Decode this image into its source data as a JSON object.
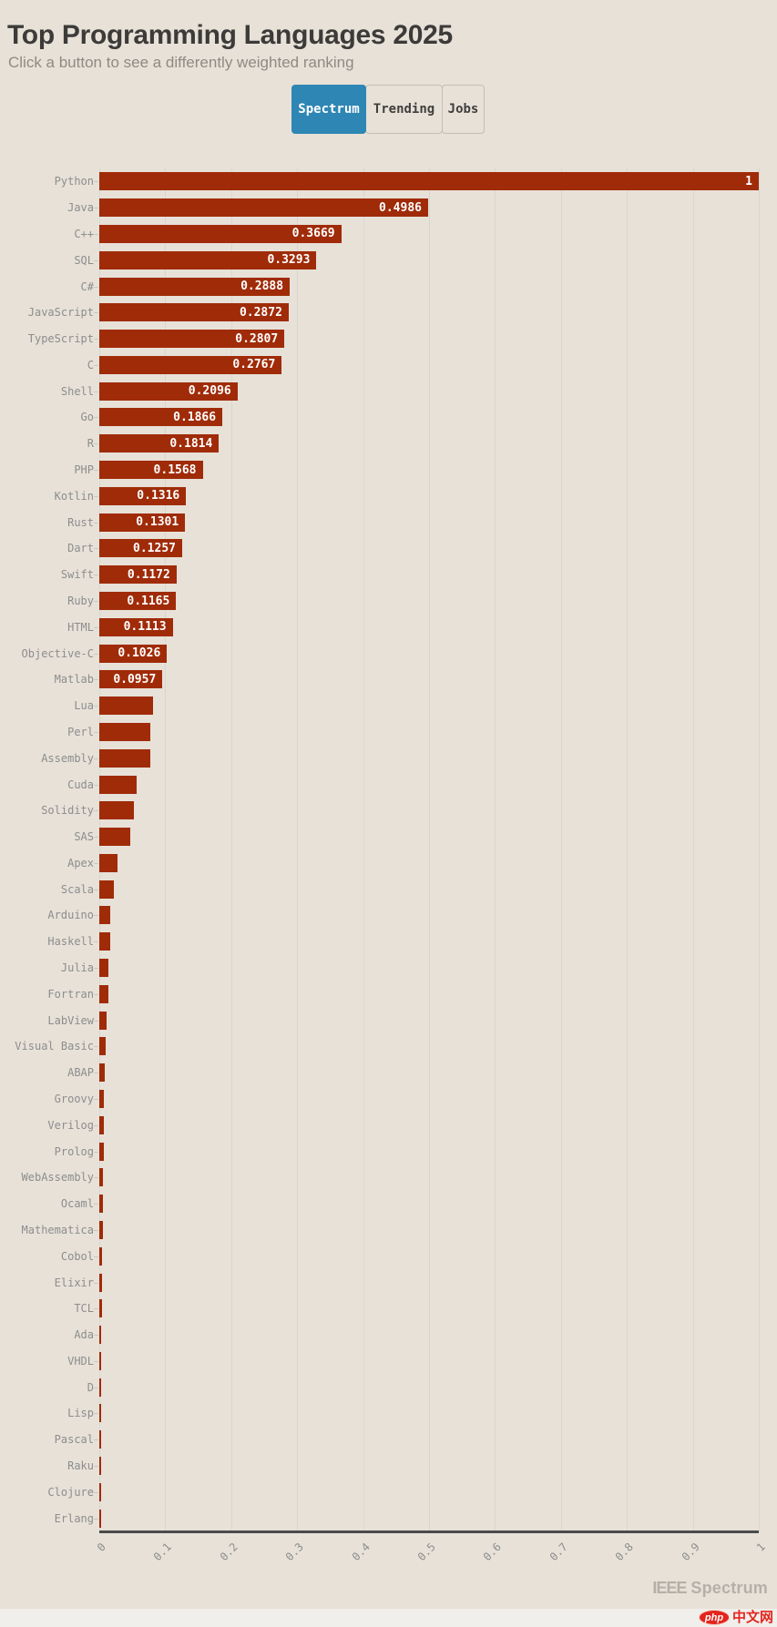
{
  "page": {
    "title": "Top Programming Languages 2025",
    "subtitle": "Click a button to see a differently weighted ranking",
    "background": "#e7e1d8",
    "accent_blue": "#2e86b4"
  },
  "buttons": [
    {
      "label": "Spectrum",
      "active": true
    },
    {
      "label": "Trending",
      "active": false
    },
    {
      "label": "Jobs",
      "active": false
    }
  ],
  "chart_data": {
    "type": "bar",
    "orientation": "horizontal",
    "title": "Top Programming Languages 2025",
    "xlabel": "",
    "ylabel": "",
    "xlim": [
      0,
      1
    ],
    "grid": true,
    "bar_color": "#a02b08",
    "x_ticks": [
      "0",
      "0.1",
      "0.2",
      "0.3",
      "0.4",
      "0.5",
      "0.6",
      "0.7",
      "0.8",
      "0.9",
      "1"
    ],
    "categories": [
      "Python",
      "Java",
      "C++",
      "SQL",
      "C#",
      "JavaScript",
      "TypeScript",
      "C",
      "Shell",
      "Go",
      "R",
      "PHP",
      "Kotlin",
      "Rust",
      "Dart",
      "Swift",
      "Ruby",
      "HTML",
      "Objective-C",
      "Matlab",
      "Lua",
      "Perl",
      "Assembly",
      "Cuda",
      "Solidity",
      "SAS",
      "Apex",
      "Scala",
      "Arduino",
      "Haskell",
      "Julia",
      "Fortran",
      "LabView",
      "Visual Basic",
      "ABAP",
      "Groovy",
      "Verilog",
      "Prolog",
      "WebAssembly",
      "Ocaml",
      "Mathematica",
      "Cobol",
      "Elixir",
      "TCL",
      "Ada",
      "VHDL",
      "D",
      "Lisp",
      "Pascal",
      "Raku",
      "Clojure",
      "Erlang"
    ],
    "values": [
      1,
      0.4986,
      0.3669,
      0.3293,
      0.2888,
      0.2872,
      0.2807,
      0.2767,
      0.2096,
      0.1866,
      0.1814,
      0.1568,
      0.1316,
      0.1301,
      0.1257,
      0.1172,
      0.1165,
      0.1113,
      0.1026,
      0.0957,
      0.082,
      0.078,
      0.077,
      0.057,
      0.052,
      0.047,
      0.028,
      0.022,
      0.017,
      0.016,
      0.0145,
      0.014,
      0.0115,
      0.009,
      0.008,
      0.0075,
      0.007,
      0.007,
      0.006,
      0.0055,
      0.005,
      0.0045,
      0.0045,
      0.0035,
      0.003,
      0.0025,
      0.0025,
      0.002,
      0.002,
      0.002,
      0.0015,
      0.001
    ],
    "value_labels": [
      "1",
      "0.4986",
      "0.3669",
      "0.3293",
      "0.2888",
      "0.2872",
      "0.2807",
      "0.2767",
      "0.2096",
      "0.1866",
      "0.1814",
      "0.1568",
      "0.1316",
      "0.1301",
      "0.1257",
      "0.1172",
      "0.1165",
      "0.1113",
      "0.1026",
      "0.0957",
      null,
      null,
      null,
      null,
      null,
      null,
      null,
      null,
      null,
      null,
      null,
      null,
      null,
      null,
      null,
      null,
      null,
      null,
      null,
      null,
      null,
      null,
      null,
      null,
      null,
      null,
      null,
      null,
      null,
      null,
      null,
      null
    ]
  },
  "footer": {
    "brand_ieee": "IEEE",
    "brand_spectrum": "Spectrum",
    "logo_php": "php",
    "logo_cn": "中文网"
  }
}
